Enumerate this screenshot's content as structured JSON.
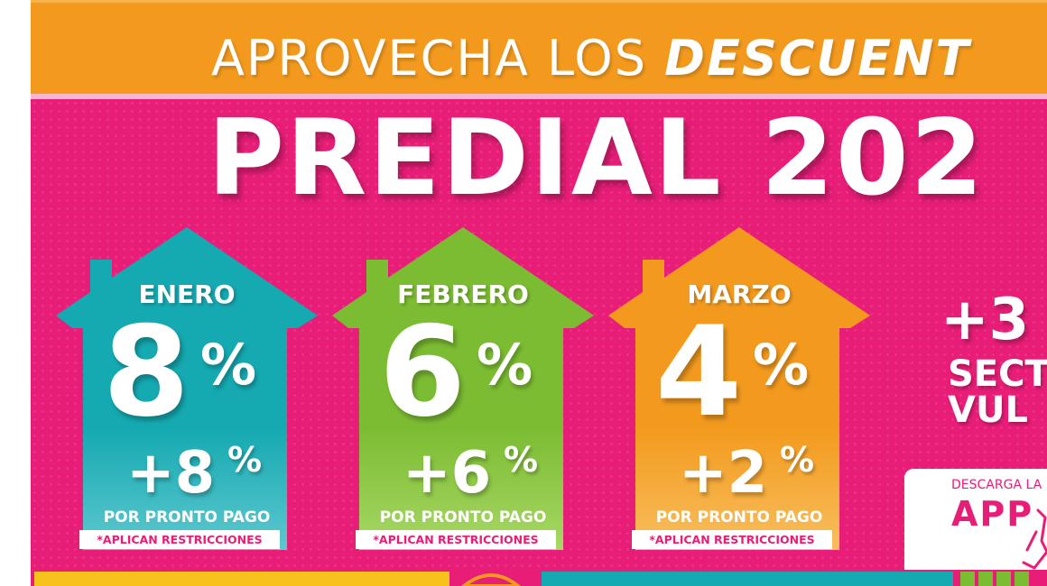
{
  "banner": {
    "text_regular": "APROVECHA LOS ",
    "text_bold": "DESCUENT"
  },
  "title": "PREDIAL 202",
  "houses": [
    {
      "month": "ENERO",
      "discount": "8",
      "discount_pct": "%",
      "extra": "+8",
      "extra_pct": "%",
      "pronto": "POR PRONTO PAGO",
      "restrictions": "*APLICAN RESTRICCIONES",
      "color": "#17a8b0"
    },
    {
      "month": "FEBRERO",
      "discount": "6",
      "discount_pct": "%",
      "extra": "+6",
      "extra_pct": "%",
      "pronto": "POR PRONTO PAGO",
      "restrictions": "*APLICAN RESTRICCIONES",
      "color": "#7cbc32"
    },
    {
      "month": "MARZO",
      "discount": "4",
      "discount_pct": "%",
      "extra": "+2",
      "extra_pct": "%",
      "pronto": "POR PRONTO PAGO",
      "restrictions": "*APLICAN RESTRICCIONES",
      "color": "#f39a1e"
    }
  ],
  "side": {
    "plus": "+3",
    "line1": "SECT",
    "line2": "VUL"
  },
  "app_box": {
    "download": "DESCARGA LA",
    "app": "APP"
  },
  "colors": {
    "pink": "#e71d77",
    "orange": "#f39a1e",
    "teal": "#17a8b0",
    "green": "#7cbc32",
    "yellow": "#f7c21b"
  }
}
